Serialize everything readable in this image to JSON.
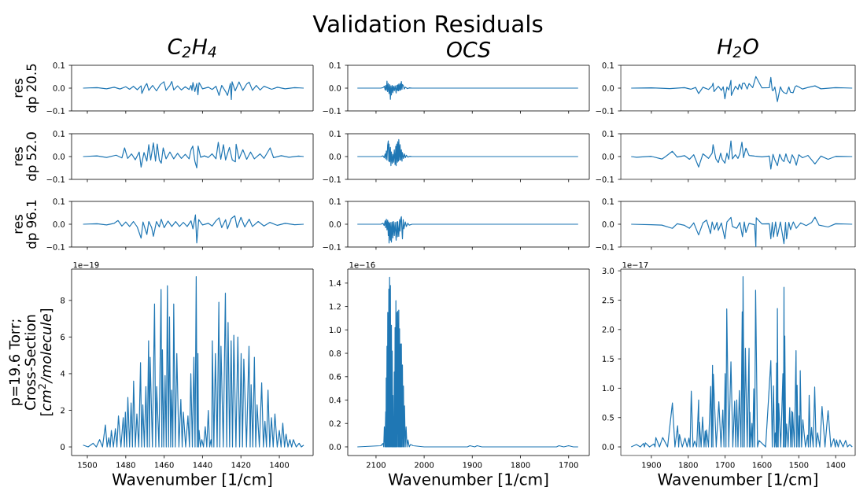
{
  "chart_data": [
    {
      "type": "other",
      "title": "Validation Residuals"
    },
    {
      "type": "line",
      "subtitle": "C$_{2}$H$_{4}$",
      "ylabel": "res\ndp 20.5",
      "color": "#1f77b4",
      "tick_labels": "y",
      "xlim": [
        1508.2,
        1382.4
      ],
      "ylim": [
        -0.1,
        0.1
      ],
      "xticks": [
        1500,
        1480,
        1460,
        1440,
        1420,
        1400
      ],
      "yticks": [
        {
          "value": -0.1,
          "label": "−0.1"
        },
        {
          "value": 0,
          "label": "0.0"
        },
        {
          "value": 0.1,
          "label": "0.1"
        }
      ],
      "x": [
        1502.2,
        1495,
        1490,
        1486,
        1483,
        1480,
        1478,
        1476,
        1474,
        1472,
        1471.6,
        1470,
        1469,
        1468,
        1466,
        1464,
        1462,
        1460.1,
        1459,
        1457,
        1456,
        1455,
        1453,
        1451,
        1449,
        1447,
        1446,
        1445.5,
        1445,
        1444,
        1443,
        1442.4,
        1441.8,
        1440,
        1437,
        1435,
        1433,
        1431.4,
        1430,
        1428,
        1427,
        1425.5,
        1425,
        1424.6,
        1423,
        1421,
        1419,
        1417,
        1415.7,
        1414,
        1412,
        1410,
        1408,
        1404,
        1401,
        1397,
        1392,
        1387.3
      ],
      "values": [
        0,
        0.002,
        -0.003,
        0.004,
        -0.004,
        0.006,
        -0.005,
        0.008,
        -0.007,
        0.01,
        -0.023,
        0.008,
        0.02,
        -0.01,
        0.012,
        -0.012,
        0.015,
        0.028,
        -0.01,
        0.012,
        0.029,
        -0.008,
        0.01,
        -0.008,
        0.006,
        -0.006,
        0.012,
        -0.01,
        0.025,
        -0.015,
        0.02,
        -0.029,
        0.024,
        -0.003,
        0.004,
        -0.006,
        0.008,
        -0.032,
        0.012,
        -0.015,
        -0.032,
        0.02,
        -0.05,
        0.028,
        -0.012,
        0.027,
        -0.01,
        0.018,
        0.026,
        -0.01,
        0.012,
        -0.008,
        0.008,
        -0.005,
        0.004,
        -0.003,
        0.002,
        0
      ]
    },
    {
      "type": "line",
      "subtitle": "OCS",
      "color": "#1f77b4",
      "tick_labels": "y",
      "xlim": [
        2158.7,
        1657.0
      ],
      "ylim": [
        -0.1,
        0.1
      ],
      "xticks": [
        2100,
        2000,
        1900,
        1800,
        1700
      ],
      "yticks": [
        {
          "value": -0.1,
          "label": "−0.1"
        },
        {
          "value": 0,
          "label": "0.0"
        },
        {
          "value": 0.1,
          "label": "0.1"
        }
      ],
      "x": [
        2138.7,
        2090,
        2085.4,
        2082.7,
        2081,
        2079.9,
        2078.5,
        2077.2,
        2075.8,
        2074.5,
        2072.9,
        2071.5,
        2070.1,
        2069,
        2068,
        2066.3,
        2065,
        2063.6,
        2062,
        2060.4,
        2058.2,
        2057,
        2055.5,
        2054.9,
        2053.5,
        2052.7,
        2051,
        2050,
        2048.5,
        2047.3,
        2046,
        2045.1,
        2043,
        2041.5,
        2039.2,
        2035,
        2031,
        2025,
        1900,
        1680.2
      ],
      "values": [
        0,
        0,
        0.002,
        0.008,
        -0.008,
        0.012,
        -0.01,
        0.031,
        -0.015,
        0.02,
        -0.024,
        0.015,
        -0.049,
        0.01,
        -0.03,
        0.012,
        -0.02,
        0.008,
        -0.012,
        0.01,
        -0.021,
        0.012,
        -0.01,
        0.014,
        -0.012,
        0.018,
        -0.01,
        0.02,
        -0.008,
        0.029,
        -0.005,
        0.016,
        0.01,
        -0.004,
        0.004,
        -0.002,
        0.001,
        0,
        0,
        0
      ]
    },
    {
      "type": "line",
      "subtitle": "H$_{2}$O",
      "color": "#1f77b4",
      "tick_labels": "y",
      "xlim": [
        1983,
        1347
      ],
      "ylim": [
        -0.1,
        0.1
      ],
      "xticks": [
        1900,
        1800,
        1700,
        1600,
        1500,
        1400
      ],
      "yticks": [
        {
          "value": -0.1,
          "label": "−0.1"
        },
        {
          "value": 0,
          "label": "0.0"
        },
        {
          "value": 0.1,
          "label": "0.1"
        }
      ],
      "x": [
        1954.8,
        1900,
        1850,
        1810,
        1793.1,
        1780,
        1771.8,
        1760,
        1745,
        1735,
        1732.6,
        1730,
        1718.3,
        1710,
        1705,
        1700.5,
        1695,
        1690,
        1684.1,
        1683,
        1672,
        1665,
        1661.4,
        1655,
        1652.8,
        1647.1,
        1640,
        1635,
        1625,
        1616.5,
        1600,
        1580,
        1575.9,
        1572,
        1568.8,
        1565,
        1558.1,
        1550,
        1545,
        1540.3,
        1533.2,
        1527,
        1522.5,
        1515.4,
        1510,
        1506.1,
        1501.1,
        1490,
        1475,
        1456.2,
        1440,
        1400,
        1355.1
      ],
      "values": [
        0,
        0.001,
        -0.002,
        0.002,
        -0.005,
        0.003,
        -0.024,
        0.004,
        -0.006,
        0.01,
        0.022,
        -0.015,
        0.008,
        -0.01,
        0.006,
        -0.047,
        0.005,
        -0.008,
        0.034,
        -0.032,
        0.008,
        -0.006,
        0.017,
        -0.004,
        0.02,
        0.022,
        -0.004,
        0.02,
        0.002,
        0.051,
        0.001,
        0.002,
        0.047,
        -0.01,
        -0.01,
        0.005,
        -0.059,
        0.006,
        -0.012,
        -0.02,
        -0.024,
        0.005,
        -0.018,
        -0.02,
        0.006,
        0.01,
        0.006,
        -0.004,
        0.003,
        0.01,
        -0.003,
        0.002,
        0
      ]
    },
    {
      "type": "line",
      "ylabel": "res\ndp 52.0",
      "color": "#1f77b4",
      "tick_labels": "y",
      "xlim": [
        1508.2,
        1382.4
      ],
      "ylim": [
        -0.1,
        0.1
      ],
      "xticks": [
        1500,
        1480,
        1460,
        1440,
        1420,
        1400
      ],
      "yticks": [
        {
          "value": -0.1,
          "label": "−0.1"
        },
        {
          "value": 0,
          "label": "0.0"
        },
        {
          "value": 0.1,
          "label": "0.1"
        }
      ],
      "x": [
        1502.2,
        1495,
        1490,
        1485,
        1482,
        1480.6,
        1479,
        1477,
        1475,
        1473,
        1472,
        1470.5,
        1469,
        1468,
        1467,
        1465.6,
        1464.5,
        1463.6,
        1462.5,
        1461.5,
        1460.5,
        1459,
        1457,
        1455,
        1453,
        1451,
        1449,
        1447,
        1446,
        1445.1,
        1444,
        1443,
        1442.3,
        1441,
        1439,
        1437,
        1435,
        1433,
        1431.8,
        1430.5,
        1429.1,
        1428,
        1426,
        1424.5,
        1422.9,
        1422.5,
        1421,
        1419,
        1417,
        1415,
        1413,
        1410,
        1408,
        1404.8,
        1403,
        1399,
        1395,
        1390,
        1387.3
      ],
      "values": [
        0,
        0.003,
        -0.004,
        0.006,
        -0.006,
        0.038,
        -0.008,
        0.012,
        -0.014,
        0.02,
        -0.046,
        0.018,
        -0.02,
        0.052,
        -0.015,
        0.06,
        -0.02,
        0.055,
        -0.015,
        -0.029,
        0.038,
        -0.01,
        0.02,
        -0.01,
        0.014,
        -0.008,
        0.01,
        -0.01,
        0.03,
        0.046,
        -0.02,
        -0.05,
        0.046,
        -0.003,
        0.003,
        -0.004,
        0.012,
        -0.01,
        0.063,
        -0.012,
        0.052,
        -0.015,
        0.04,
        -0.015,
        -0.023,
        0.054,
        -0.01,
        0.03,
        -0.012,
        0.02,
        -0.01,
        0.012,
        -0.008,
        0.038,
        -0.005,
        0.004,
        -0.003,
        0.002,
        0
      ]
    },
    {
      "type": "line",
      "color": "#1f77b4",
      "tick_labels": "y",
      "xlim": [
        2158.7,
        1657.0
      ],
      "ylim": [
        -0.1,
        0.1
      ],
      "xticks": [
        2100,
        2000,
        1900,
        1800,
        1700
      ],
      "yticks": [
        {
          "value": -0.1,
          "label": "−0.1"
        },
        {
          "value": 0,
          "label": "0.0"
        },
        {
          "value": 0.1,
          "label": "0.1"
        }
      ],
      "x": [
        2138.7,
        2090,
        2085.4,
        2083,
        2081,
        2079.9,
        2078.5,
        2077.2,
        2075.8,
        2074.5,
        2073.5,
        2072.9,
        2071.5,
        2070.1,
        2069,
        2068,
        2066.3,
        2065,
        2063.6,
        2062,
        2060.4,
        2059,
        2058.2,
        2057,
        2055.5,
        2054.9,
        2053.5,
        2052.7,
        2051,
        2050,
        2048.5,
        2047.3,
        2046,
        2045.1,
        2043,
        2041,
        2039.2,
        2037,
        2034,
        2030,
        2025,
        1900,
        1680.2
      ],
      "values": [
        0,
        0,
        0.003,
        -0.005,
        0.012,
        -0.01,
        0.025,
        -0.015,
        0.05,
        0.069,
        -0.02,
        0.055,
        -0.023,
        0.04,
        -0.04,
        0.02,
        -0.03,
        0.01,
        -0.025,
        0.03,
        -0.035,
        0.045,
        -0.04,
        0.055,
        -0.025,
        0.065,
        -0.02,
        0.075,
        -0.015,
        0.052,
        -0.015,
        0.03,
        -0.02,
        0.018,
        -0.008,
        0.012,
        -0.005,
        0.006,
        -0.002,
        0.001,
        0,
        0,
        0
      ]
    },
    {
      "type": "line",
      "color": "#1f77b4",
      "tick_labels": "y",
      "xlim": [
        1983,
        1347
      ],
      "ylim": [
        -0.1,
        0.1
      ],
      "xticks": [
        1900,
        1800,
        1700,
        1600,
        1500,
        1400
      ],
      "yticks": [
        {
          "value": -0.1,
          "label": "−0.1"
        },
        {
          "value": 0,
          "label": "0.0"
        },
        {
          "value": 0.1,
          "label": "0.1"
        }
      ],
      "x": [
        1954.8,
        1940,
        1900,
        1871.5,
        1860,
        1843,
        1830,
        1810,
        1796.7,
        1785,
        1771.8,
        1760,
        1745,
        1735,
        1732.6,
        1725,
        1718.3,
        1712,
        1707.7,
        1700.5,
        1695,
        1690,
        1684.1,
        1680,
        1672,
        1665,
        1660,
        1654.2,
        1650,
        1643.5,
        1635,
        1620,
        1600,
        1580,
        1575.9,
        1570,
        1565,
        1558.1,
        1552,
        1545,
        1540.3,
        1535,
        1530,
        1523.9,
        1518,
        1512,
        1506.8,
        1500,
        1490,
        1475,
        1456.2,
        1440,
        1420.6,
        1400,
        1355.1
      ],
      "values": [
        0,
        -0.003,
        0.001,
        -0.011,
        0.002,
        0.023,
        -0.002,
        0.004,
        -0.012,
        0.008,
        -0.046,
        0.012,
        -0.008,
        0.015,
        0.052,
        -0.01,
        -0.026,
        0.015,
        -0.012,
        -0.029,
        0.015,
        -0.012,
        0.069,
        -0.01,
        0.008,
        -0.008,
        0.012,
        0.063,
        -0.005,
        0.037,
        0.005,
        0.002,
        -0.001,
        0.002,
        -0.055,
        0.01,
        -0.015,
        -0.04,
        0.01,
        -0.015,
        -0.022,
        0.012,
        -0.015,
        -0.029,
        0.008,
        -0.01,
        -0.038,
        0.008,
        -0.005,
        0.005,
        -0.032,
        0.002,
        -0.012,
        0.001,
        0
      ]
    },
    {
      "type": "line",
      "ylabel": "res\ndp 96.1",
      "color": "#1f77b4",
      "tick_labels": "y",
      "xlim": [
        1508.2,
        1382.4
      ],
      "ylim": [
        -0.1,
        0.1
      ],
      "xticks": [
        1500,
        1480,
        1460,
        1440,
        1420,
        1400
      ],
      "yticks": [
        {
          "value": -0.1,
          "label": "−0.1"
        },
        {
          "value": 0,
          "label": "0.0"
        },
        {
          "value": 0.1,
          "label": "0.1"
        }
      ],
      "x": [
        1502.2,
        1495,
        1490,
        1486,
        1484,
        1482,
        1480,
        1478,
        1476,
        1474,
        1472,
        1471,
        1469,
        1468,
        1466.5,
        1465.6,
        1464,
        1462.5,
        1461.5,
        1460,
        1458,
        1456,
        1454,
        1452,
        1450,
        1448,
        1446,
        1445,
        1443.7,
        1443,
        1442,
        1440,
        1437,
        1435,
        1433,
        1431.4,
        1430,
        1428,
        1427,
        1425,
        1423.2,
        1422,
        1420,
        1418,
        1415.7,
        1414,
        1411,
        1408,
        1405,
        1401,
        1397,
        1392,
        1387.3
      ],
      "values": [
        0,
        0.002,
        -0.003,
        0.004,
        0.016,
        -0.008,
        0.01,
        -0.01,
        0.012,
        -0.012,
        -0.061,
        0.01,
        -0.045,
        0.012,
        -0.015,
        -0.053,
        0.012,
        -0.012,
        0.022,
        -0.015,
        0.014,
        -0.01,
        0.012,
        -0.01,
        0.008,
        -0.01,
        0.015,
        -0.02,
        0.041,
        -0.082,
        0.02,
        -0.003,
        0.004,
        -0.008,
        0.015,
        0.028,
        -0.015,
        0.02,
        -0.02,
        0.025,
        0.037,
        -0.015,
        0.03,
        -0.012,
        0.022,
        -0.01,
        0.012,
        -0.008,
        0.008,
        -0.005,
        0.004,
        -0.002,
        0
      ]
    },
    {
      "type": "line",
      "color": "#1f77b4",
      "tick_labels": "y",
      "xlim": [
        2158.7,
        1657.0
      ],
      "ylim": [
        -0.1,
        0.1
      ],
      "xticks": [
        2100,
        2000,
        1900,
        1800,
        1700
      ],
      "yticks": [
        {
          "value": -0.1,
          "label": "−0.1"
        },
        {
          "value": 0,
          "label": "0.0"
        },
        {
          "value": 0.1,
          "label": "0.1"
        }
      ],
      "x": [
        2138.7,
        2090,
        2085.4,
        2083,
        2081,
        2079.9,
        2078.5,
        2077.2,
        2075.8,
        2074.5,
        2073.5,
        2072.9,
        2071.5,
        2070.1,
        2069,
        2068,
        2066.3,
        2065,
        2063.6,
        2062,
        2060.4,
        2058.2,
        2057,
        2055.5,
        2054.9,
        2052.7,
        2051,
        2050,
        2048.5,
        2047.3,
        2046,
        2045.1,
        2043.5,
        2042,
        2039.2,
        2037,
        2034,
        2031,
        2025,
        1900,
        1680.2
      ],
      "values": [
        0,
        0,
        0.004,
        -0.006,
        0.015,
        -0.015,
        0.022,
        -0.025,
        0.018,
        -0.05,
        0.01,
        -0.082,
        0.005,
        -0.07,
        0.008,
        -0.078,
        0.01,
        -0.06,
        0.012,
        -0.05,
        0.008,
        -0.07,
        0.01,
        -0.055,
        0.012,
        -0.053,
        0.02,
        -0.03,
        0.025,
        0.033,
        -0.03,
        -0.064,
        0.02,
        -0.02,
        0.01,
        -0.01,
        0.004,
        -0.004,
        0,
        0,
        0
      ]
    },
    {
      "type": "line",
      "color": "#1f77b4",
      "tick_labels": "y",
      "xlim": [
        1983,
        1347
      ],
      "ylim": [
        -0.1,
        0.1
      ],
      "xticks": [
        1900,
        1800,
        1700,
        1600,
        1500,
        1400
      ],
      "yticks": [
        {
          "value": -0.1,
          "label": "−0.1"
        },
        {
          "value": 0,
          "label": "0.0"
        },
        {
          "value": 0.1,
          "label": "0.1"
        }
      ],
      "x": [
        1954.8,
        1900,
        1871.5,
        1843,
        1830,
        1810,
        1796.7,
        1785,
        1771.8,
        1760,
        1750.4,
        1745,
        1739.7,
        1735,
        1729,
        1722,
        1718.3,
        1710,
        1700.5,
        1695,
        1684.1,
        1680,
        1668.5,
        1660,
        1652.8,
        1648,
        1643.5,
        1635,
        1620,
        1616.5,
        1615.5,
        1600,
        1580,
        1575.9,
        1572,
        1568.8,
        1563,
        1558.1,
        1550,
        1540.3,
        1536,
        1533.2,
        1527,
        1522.5,
        1515,
        1506.8,
        1495,
        1480,
        1465,
        1456.2,
        1445,
        1420.6,
        1400,
        1355.1
      ],
      "values": [
        0,
        -0.002,
        -0.004,
        -0.018,
        0.002,
        -0.005,
        -0.018,
        0.006,
        -0.047,
        0.006,
        0.018,
        -0.01,
        -0.041,
        0.01,
        -0.024,
        0.008,
        -0.027,
        0.006,
        -0.064,
        0.01,
        0.03,
        -0.01,
        -0.018,
        0.008,
        -0.055,
        0.01,
        -0.036,
        0.004,
        -0.002,
        -0.098,
        0.028,
        0.001,
        0.002,
        -0.064,
        0.008,
        -0.056,
        0.01,
        -0.053,
        0.01,
        -0.085,
        0.008,
        -0.064,
        0.008,
        -0.024,
        0.01,
        -0.018,
        0.006,
        -0.006,
        0.008,
        0.031,
        -0.004,
        -0.012,
        0.002,
        0
      ]
    },
    {
      "type": "line",
      "ylabel": "p=19.6 Torr;\nCross-Section\n[*cm*$^{2}$*/molecule*]",
      "xlabel": "Wavenumber [1/cm]",
      "annotations": [
        "1e−19"
      ],
      "color": "#1f77b4",
      "xlim": [
        1508.2,
        1382.4
      ],
      "ylim": [
        -0.47,
        9.71
      ],
      "xticks": [
        1500,
        1480,
        1460,
        1440,
        1420,
        1400
      ],
      "yticks": [
        0,
        2,
        4,
        6,
        8
      ],
      "x": [
        1502.2,
        1499.6,
        1497.0,
        1495.3,
        1493.6,
        1492.1,
        1490.6,
        1489.7,
        1488.8,
        1488.1,
        1487.5,
        1486.4,
        1485.4,
        1484.6,
        1483.8,
        1482.5,
        1481.3,
        1480.7,
        1480.2,
        1479.5,
        1478.9,
        1478.0,
        1477.2,
        1476.5,
        1475.9,
        1475.0,
        1474.2,
        1473.2,
        1472.3,
        1471.7,
        1471.1,
        1470.3,
        1469.5,
        1468.8,
        1468.1,
        1467.7,
        1467.3,
        1466.1,
        1465.0,
        1464.4,
        1463.9,
        1462.7,
        1461.6,
        1461.2,
        1460.9,
        1460.2,
        1459.5,
        1458.9,
        1458.3,
        1457.7,
        1457.2,
        1456.6,
        1456.1,
        1455.5,
        1455.0,
        1454.2,
        1453.4,
        1452.3,
        1451.3,
        1450.6,
        1450.0,
        1448.8,
        1447.6,
        1446.8,
        1446.1,
        1445.3,
        1444.5,
        1443.9,
        1443.3,
        1442.8,
        1442.4,
        1442.1,
        1441.8,
        1441.1,
        1440.4,
        1439.5,
        1438.6,
        1437.8,
        1437.0,
        1436.3,
        1435.6,
        1435.2,
        1434.9,
        1434.1,
        1433.3,
        1432.4,
        1431.5,
        1431.0,
        1430.4,
        1429.2,
        1428.1,
        1427.4,
        1426.7,
        1425.9,
        1425.1,
        1424.4,
        1423.7,
        1422.6,
        1421.6,
        1420.7,
        1419.9,
        1419.2,
        1418.5,
        1417.1,
        1415.8,
        1415.2,
        1414.7,
        1413.8,
        1413.0,
        1412.3,
        1411.6,
        1410.4,
        1409.2,
        1408.3,
        1407.5,
        1406.7,
        1405.9,
        1405.0,
        1404.1,
        1403.2,
        1402.3,
        1401.1,
        1400.0,
        1399.1,
        1398.2,
        1397.3,
        1396.5,
        1395.5,
        1394.5,
        1393.6,
        1392.7,
        1391.2,
        1389.7,
        1388.5,
        1387.3
      ],
      "values": [
        0.1,
        0,
        0.2,
        0,
        0.4,
        0,
        1.2,
        0,
        0.5,
        0,
        0.9,
        0,
        1.0,
        0,
        1.7,
        0,
        1.6,
        0,
        1.9,
        0,
        2.7,
        0,
        2.4,
        0,
        3.6,
        0,
        1.8,
        0,
        4.6,
        0,
        2.3,
        0,
        3.3,
        0,
        5.8,
        0,
        4.9,
        0,
        7.8,
        0,
        3.3,
        0,
        8.6,
        0,
        5.3,
        0,
        3.9,
        0,
        8.8,
        0,
        7.1,
        0,
        3.1,
        0,
        7.8,
        0,
        5.1,
        0,
        2.6,
        0,
        1.9,
        0,
        1.7,
        0,
        4.0,
        0,
        4.9,
        0,
        9.3,
        0,
        5.1,
        0,
        0.9,
        0,
        0.4,
        0,
        1.1,
        0,
        2.0,
        0,
        0.4,
        0,
        5.8,
        0,
        5.1,
        0,
        7.9,
        0,
        5.5,
        0,
        8.4,
        0,
        6.8,
        0,
        5.8,
        0,
        6.1,
        0,
        6.0,
        0,
        5.1,
        0,
        4.8,
        0,
        5.5,
        0,
        3.4,
        0,
        4.9,
        0,
        2.3,
        0,
        3.5,
        0,
        1.4,
        0,
        3.1,
        0,
        1.6,
        0,
        1.8,
        0,
        0.9,
        0,
        1.3,
        0,
        0.7,
        0,
        0.4,
        0,
        0.4,
        0,
        0.2,
        0,
        0.1
      ]
    },
    {
      "type": "line",
      "xlabel": "Wavenumber [1/cm]",
      "annotations": [
        "1e−16"
      ],
      "color": "#1f77b4",
      "xlim": [
        2158.7,
        1657.0
      ],
      "ylim": [
        -0.074,
        1.52
      ],
      "xticks": [
        2100,
        2000,
        1900,
        1800,
        1700
      ],
      "yticks": [
        {
          "value": 0,
          "label": "0.0"
        },
        {
          "value": 0.2,
          "label": "0.2"
        },
        {
          "value": 0.4,
          "label": "0.4"
        },
        {
          "value": 0.6,
          "label": "0.6"
        },
        {
          "value": 0.8,
          "label": "0.8"
        },
        {
          "value": 1.0,
          "label": "1.0"
        },
        {
          "value": 1.2,
          "label": "1.2"
        },
        {
          "value": 1.4,
          "label": "1.4"
        }
      ],
      "x": [
        2138.7,
        2090,
        2085.4,
        2084.0,
        2082.7,
        2081.3,
        2079.9,
        2079.3,
        2078.8,
        2078.0,
        2077.2,
        2076.4,
        2075.6,
        2074.5,
        2073.4,
        2072.6,
        2071.8,
        2070.9,
        2070.1,
        2069.0,
        2068.0,
        2067.1,
        2066.3,
        2065.5,
        2064.7,
        2064.1,
        2063.6,
        2062.8,
        2062.0,
        2061.2,
        2060.4,
        2059.5,
        2058.7,
        2057.9,
        2057.1,
        2056.0,
        2054.9,
        2053.8,
        2052.7,
        2051.9,
        2051.1,
        2050.0,
        2048.9,
        2048.1,
        2047.3,
        2046.2,
        2045.1,
        2044.0,
        2043.0,
        2041.9,
        2040.8,
        2039.2,
        2037.5,
        2035.6,
        2033.7,
        2031,
        2028.3,
        2022.8,
        2000,
        1910,
        1905,
        1895,
        1890,
        1880,
        1725,
        1720,
        1710,
        1700,
        1690,
        1680.2
      ],
      "values": [
        0,
        0.01,
        0.03,
        0,
        0.17,
        0,
        0.3,
        0,
        0.59,
        0,
        0.86,
        0,
        1.15,
        0,
        1.35,
        0,
        1.45,
        0,
        1.38,
        0,
        1.04,
        0,
        0.82,
        0,
        0.44,
        0,
        0.26,
        0,
        0.64,
        0,
        1.02,
        0,
        1.25,
        0,
        1.15,
        0,
        1.16,
        0,
        1.17,
        0,
        1.01,
        0,
        0.88,
        0,
        0.88,
        0,
        0.7,
        0,
        0.52,
        0,
        0.35,
        0,
        0.17,
        0,
        0.06,
        0,
        0.02,
        0.01,
        0,
        0,
        0.01,
        0,
        0.01,
        0,
        0,
        0.01,
        0,
        0.01,
        0,
        0
      ]
    },
    {
      "type": "line",
      "xlabel": "Wavenumber [1/cm]",
      "annotations": [
        "1e−17"
      ],
      "color": "#1f77b4",
      "xlim": [
        1983,
        1347
      ],
      "ylim": [
        -0.147,
        3.03
      ],
      "xticks": [
        1900,
        1800,
        1700,
        1600,
        1500,
        1400
      ],
      "yticks": [
        {
          "value": 0,
          "label": "0.0"
        },
        {
          "value": 0.5,
          "label": "0.5"
        },
        {
          "value": 1.0,
          "label": "1.0"
        },
        {
          "value": 1.5,
          "label": "1.5"
        },
        {
          "value": 2.0,
          "label": "2.0"
        },
        {
          "value": 2.5,
          "label": "2.5"
        },
        {
          "value": 3.0,
          "label": "3.0"
        }
      ],
      "x": [
        1954.8,
        1940.5,
        1930,
        1921.3,
        1918.8,
        1916.3,
        1905,
        1892.8,
        1890,
        1887.8,
        1878,
        1869.3,
        1856,
        1842.9,
        1836,
        1828.7,
        1826,
        1823.7,
        1816,
        1808.8,
        1803,
        1798.1,
        1795,
        1791.7,
        1787,
        1782.4,
        1777,
        1771.7,
        1770.6,
        1769.6,
        1765,
        1761.0,
        1757,
        1753.9,
        1752,
        1750.4,
        1745,
        1739.0,
        1736.5,
        1734.0,
        1733,
        1731.8,
        1724,
        1716.9,
        1711,
        1706.2,
        1703,
        1699.8,
        1697.6,
        1695.5,
        1690,
        1684.1,
        1679,
        1674.1,
        1671,
        1668.4,
        1665,
        1661.3,
        1657,
        1653.5,
        1652.4,
        1651.3,
        1648,
        1644.9,
        1640,
        1635.0,
        1634,
        1632.8,
        1630,
        1627.1,
        1625,
        1622.2,
        1619.7,
        1617.2,
        1612,
        1607.9,
        1590,
        1575.9,
        1572,
        1568.7,
        1566,
        1563.7,
        1562,
        1560.2,
        1559,
        1558.1,
        1556,
        1554.5,
        1549,
        1543.1,
        1541.6,
        1540.2,
        1539.1,
        1538.1,
        1535.6,
        1533.1,
        1529,
        1524.6,
        1522,
        1518.9,
        1517.8,
        1516.7,
        1512,
        1507.5,
        1506,
        1504.6,
        1502,
        1498.9,
        1497.5,
        1496.1,
        1492.5,
        1489.0,
        1482,
        1476.1,
        1474,
        1471.9,
        1468.6,
        1465.4,
        1461,
        1456.9,
        1453,
        1449.1,
        1443,
        1437.0,
        1429,
        1420.6,
        1413,
        1404.9,
        1401,
        1397.8,
        1393,
        1388.5,
        1380,
        1372.9,
        1368,
        1362.2,
        1355.0
      ],
      "values": [
        0,
        0.04,
        0,
        0.06,
        0,
        0.07,
        0,
        0.05,
        0,
        0.16,
        0,
        0.16,
        0,
        0.75,
        0,
        0.36,
        0,
        0.21,
        0,
        0.15,
        0,
        0.15,
        0,
        0.95,
        0,
        0.1,
        0,
        0.8,
        0,
        0.42,
        0,
        0.51,
        0,
        0.27,
        0,
        0.29,
        0,
        1.03,
        0,
        1.39,
        0,
        1.24,
        0,
        0.77,
        0,
        0.63,
        0,
        1.25,
        0,
        2.35,
        0,
        1.45,
        0,
        0.78,
        0,
        0.8,
        0,
        0.96,
        0,
        2.3,
        0,
        2.9,
        0,
        1.68,
        0,
        1.68,
        0,
        0.59,
        0,
        0.4,
        0,
        0.99,
        0,
        2.67,
        0,
        0.11,
        0,
        1.47,
        0,
        1.04,
        0,
        0.24,
        0,
        1.43,
        0,
        2.36,
        0,
        0.74,
        0,
        1.25,
        0,
        2.72,
        0,
        1.89,
        0,
        0.39,
        0,
        0.67,
        0,
        0.61,
        0,
        0.59,
        0,
        1.64,
        0,
        1.05,
        0,
        0.53,
        0,
        1.3,
        0,
        0.46,
        0,
        0.2,
        0,
        0.88,
        0,
        0.33,
        0,
        1.02,
        0,
        0.24,
        0,
        0.69,
        0,
        0.62,
        0,
        0.14,
        0,
        0.12,
        0,
        0.12,
        0,
        0.11,
        0,
        0.04,
        0
      ]
    }
  ]
}
